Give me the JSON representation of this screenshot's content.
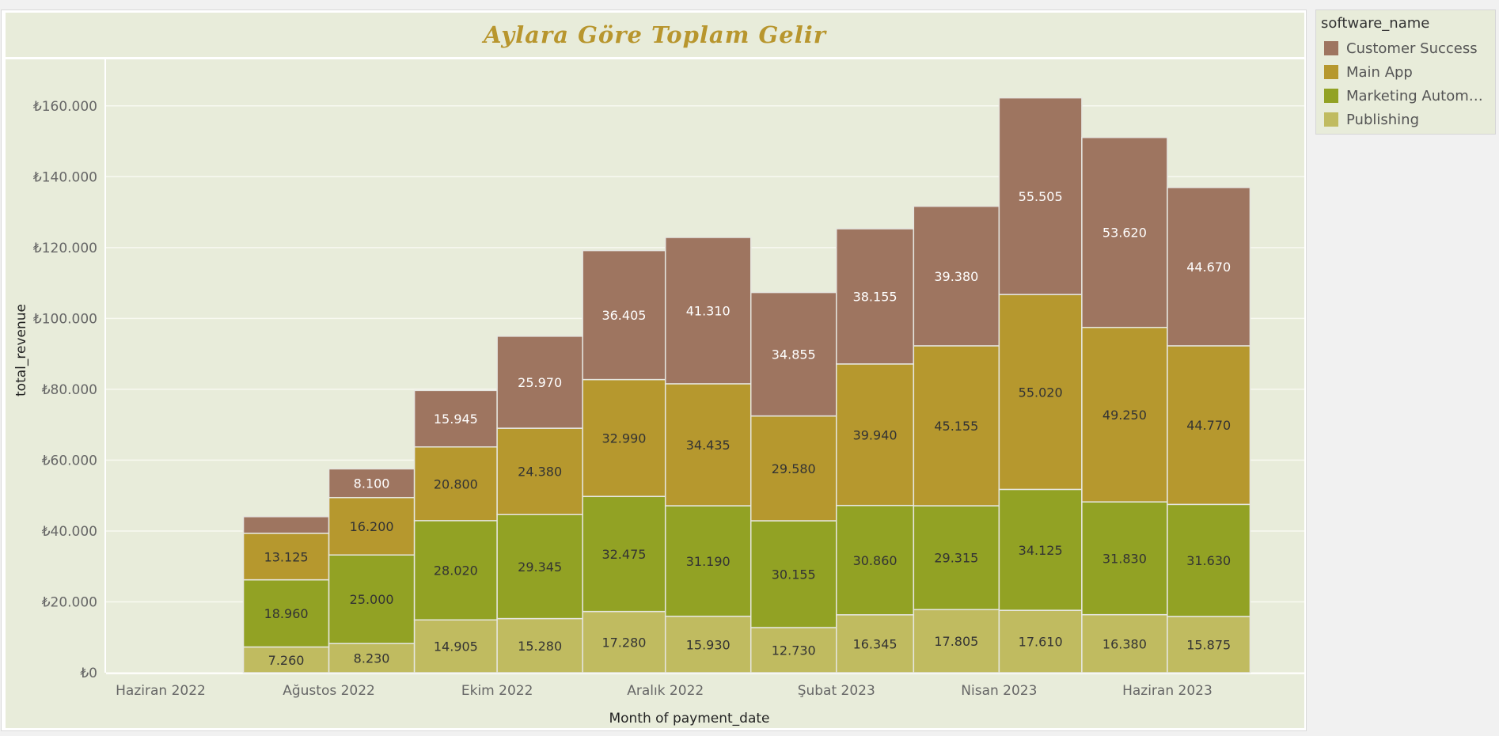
{
  "chart_data": {
    "type": "bar",
    "stacked": true,
    "title": "Aylara Göre Toplam Gelir",
    "xlabel": "Month of payment_date",
    "ylabel": "total_revenue",
    "ylim": [
      0,
      170000
    ],
    "yticks": [
      {
        "value": 0,
        "label": "₺0"
      },
      {
        "value": 20000,
        "label": "₺20.000"
      },
      {
        "value": 40000,
        "label": "₺40.000"
      },
      {
        "value": 60000,
        "label": "₺60.000"
      },
      {
        "value": 80000,
        "label": "₺80.000"
      },
      {
        "value": 100000,
        "label": "₺100.000"
      },
      {
        "value": 120000,
        "label": "₺120.000"
      },
      {
        "value": 140000,
        "label": "₺140.000"
      },
      {
        "value": 160000,
        "label": "₺160.000"
      }
    ],
    "xrange": [
      "2022-06-01",
      "2023-06-30"
    ],
    "xticks": [
      {
        "date": "2022-06-01",
        "label": "Haziran 2022"
      },
      {
        "date": "2022-08-01",
        "label": "Ağustos 2022"
      },
      {
        "date": "2022-10-01",
        "label": "Ekim 2022"
      },
      {
        "date": "2022-12-01",
        "label": "Aralık 2022"
      },
      {
        "date": "2023-02-01",
        "label": "Şubat 2023"
      },
      {
        "date": "2023-04-01",
        "label": "Nisan 2023"
      },
      {
        "date": "2023-06-01",
        "label": "Haziran 2023"
      }
    ],
    "categories": [
      "2022-07",
      "2022-08",
      "2022-09",
      "2022-10",
      "2022-11",
      "2022-12",
      "2023-01",
      "2023-02",
      "2023-03",
      "2023-04",
      "2023-05",
      "2023-06"
    ],
    "series": [
      {
        "name": "Publishing",
        "color": "#c0bb60",
        "label_color": "#333333",
        "values": [
          7260,
          8230,
          14905,
          15280,
          17280,
          15930,
          12730,
          16345,
          17805,
          17610,
          16380,
          15875
        ],
        "labels": [
          "7.260",
          "8.230",
          "14.905",
          "15.280",
          "17.280",
          "15.930",
          "12.730",
          "16.345",
          "17.805",
          "17.610",
          "16.380",
          "15.875"
        ]
      },
      {
        "name": "Marketing Automat...",
        "color": "#92a224",
        "label_color": "#333333",
        "values": [
          18960,
          25000,
          28020,
          29345,
          32475,
          31190,
          30155,
          30860,
          29315,
          34125,
          31830,
          31630
        ],
        "labels": [
          "18.960",
          "25.000",
          "28.020",
          "29.345",
          "32.475",
          "31.190",
          "30.155",
          "30.860",
          "29.315",
          "34.125",
          "31.830",
          "31.630"
        ]
      },
      {
        "name": "Main App",
        "color": "#b6982e",
        "label_color": "#333333",
        "values": [
          13125,
          16200,
          20800,
          24380,
          32990,
          34435,
          29580,
          39940,
          45155,
          55020,
          49250,
          44770
        ],
        "labels": [
          "13.125",
          "16.200",
          "20.800",
          "24.380",
          "32.990",
          "34.435",
          "29.580",
          "39.940",
          "45.155",
          "55.020",
          "49.250",
          "44.770"
        ]
      },
      {
        "name": "Customer Success",
        "color": "#9e7560",
        "label_color": "#ffffff",
        "values": [
          4700,
          8100,
          15945,
          25970,
          36405,
          41310,
          34855,
          38155,
          39380,
          55505,
          53620,
          44670
        ],
        "labels": [
          "",
          "8.100",
          "15.945",
          "25.970",
          "36.405",
          "41.310",
          "34.855",
          "38.155",
          "39.380",
          "55.505",
          "53.620",
          "44.670"
        ]
      }
    ],
    "grid": true,
    "legend_position": "right"
  },
  "legend": {
    "title": "software_name",
    "items": [
      {
        "label": "Customer Success",
        "color": "#9e7560"
      },
      {
        "label": "Main App",
        "color": "#b6982e"
      },
      {
        "label": "Marketing Automat...",
        "color": "#92a224"
      },
      {
        "label": "Publishing",
        "color": "#c0bb60"
      }
    ]
  }
}
